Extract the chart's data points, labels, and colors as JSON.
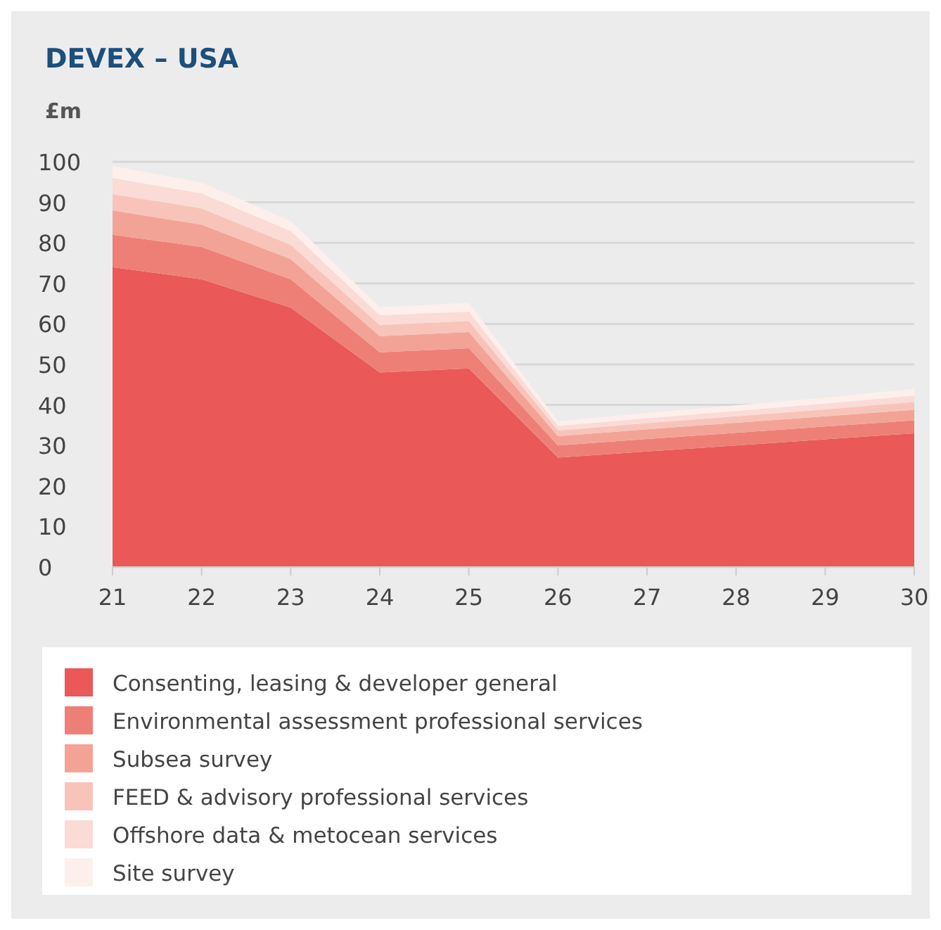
{
  "chart_data": {
    "type": "area",
    "stacked": true,
    "title": "DEVEX – USA",
    "ylabel": "£m",
    "x": [
      21,
      22,
      23,
      24,
      25,
      26,
      27,
      28,
      29,
      30
    ],
    "xlim": [
      21,
      30
    ],
    "xticks": [
      21,
      22,
      23,
      24,
      25,
      26,
      27,
      28,
      29,
      30
    ],
    "ylim": [
      0,
      100
    ],
    "yticks": [
      0,
      10,
      20,
      30,
      40,
      50,
      60,
      70,
      80,
      90,
      100
    ],
    "grid": "y",
    "legend": "bottom",
    "series": [
      {
        "name": "Consenting, leasing & developer general",
        "color": "#ea5858",
        "values": [
          74,
          71,
          64,
          48,
          49,
          27,
          28.5,
          30,
          31.5,
          33
        ]
      },
      {
        "name": "Environmental assessment professional services",
        "color": "#ee7f77",
        "values": [
          8,
          8,
          7,
          5,
          5,
          3,
          3.1,
          3.1,
          3.2,
          3.2
        ]
      },
      {
        "name": "Subsea survey",
        "color": "#f3a396",
        "values": [
          6,
          5.5,
          5,
          4,
          4,
          2.3,
          2.4,
          2.5,
          2.5,
          2.6
        ]
      },
      {
        "name": "FEED & advisory professional services",
        "color": "#f8c4b9",
        "values": [
          4,
          4,
          3.5,
          2.7,
          2.7,
          1.4,
          1.5,
          1.6,
          1.7,
          1.9
        ]
      },
      {
        "name": "Offshore data & metocean services",
        "color": "#fbdbd5",
        "values": [
          4,
          3.7,
          3.4,
          2.4,
          2.3,
          1.1,
          1.2,
          1.3,
          1.4,
          1.6
        ]
      },
      {
        "name": "Site survey",
        "color": "#fdefeb",
        "values": [
          3,
          2.7,
          2.5,
          2,
          2.2,
          1.2,
          1.3,
          1.4,
          1.5,
          1.7
        ]
      }
    ]
  }
}
